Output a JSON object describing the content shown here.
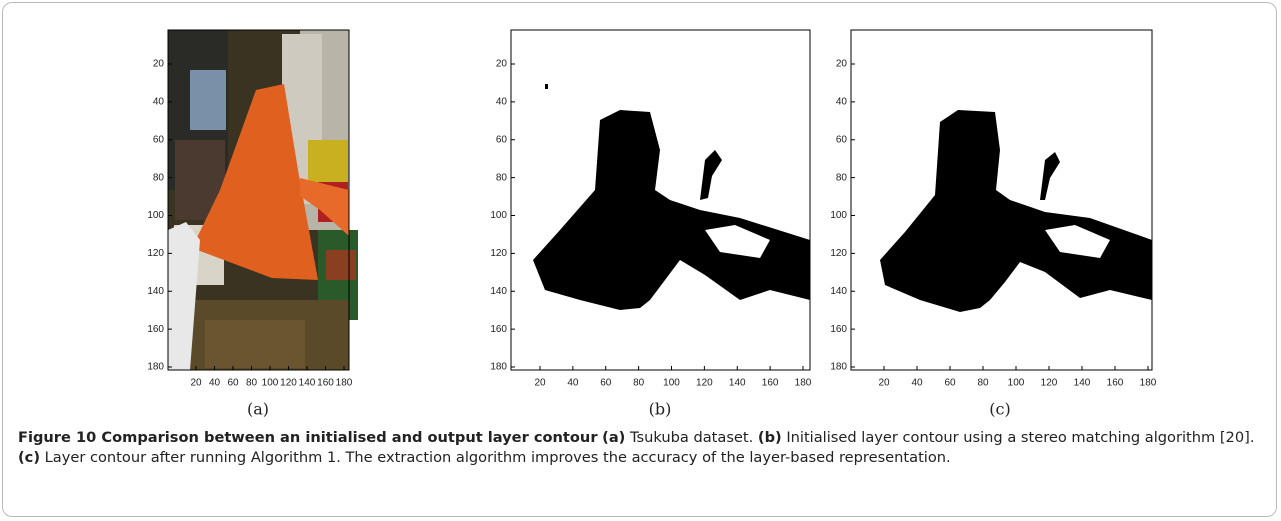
{
  "figure": {
    "panels": [
      {
        "label": "(a)",
        "xticks": [
          20,
          40,
          60,
          80,
          100,
          120,
          140,
          160,
          180
        ],
        "yticks": [
          20,
          40,
          60,
          80,
          100,
          120,
          140,
          160,
          180
        ]
      },
      {
        "label": "(b)",
        "xticks": [
          20,
          40,
          60,
          80,
          100,
          120,
          140,
          160,
          180
        ],
        "yticks": [
          20,
          40,
          60,
          80,
          100,
          120,
          140,
          160,
          180
        ]
      },
      {
        "label": "(c)",
        "xticks": [
          20,
          40,
          60,
          80,
          100,
          120,
          140,
          160,
          180
        ],
        "yticks": [
          20,
          40,
          60,
          80,
          100,
          120,
          140,
          160,
          180
        ]
      }
    ],
    "caption": {
      "title": "Figure 10 Comparison between an initialised and output layer contour",
      "parts": [
        {
          "label": "(a)",
          "text": "Tsukuba dataset."
        },
        {
          "label": "(b)",
          "text": "Initialised layer contour using a stereo matching algorithm [20]."
        },
        {
          "label": "(c)",
          "text": "Layer contour after running Algorithm 1. The extraction algorithm improves the accuracy of the layer-based representation."
        }
      ]
    }
  }
}
